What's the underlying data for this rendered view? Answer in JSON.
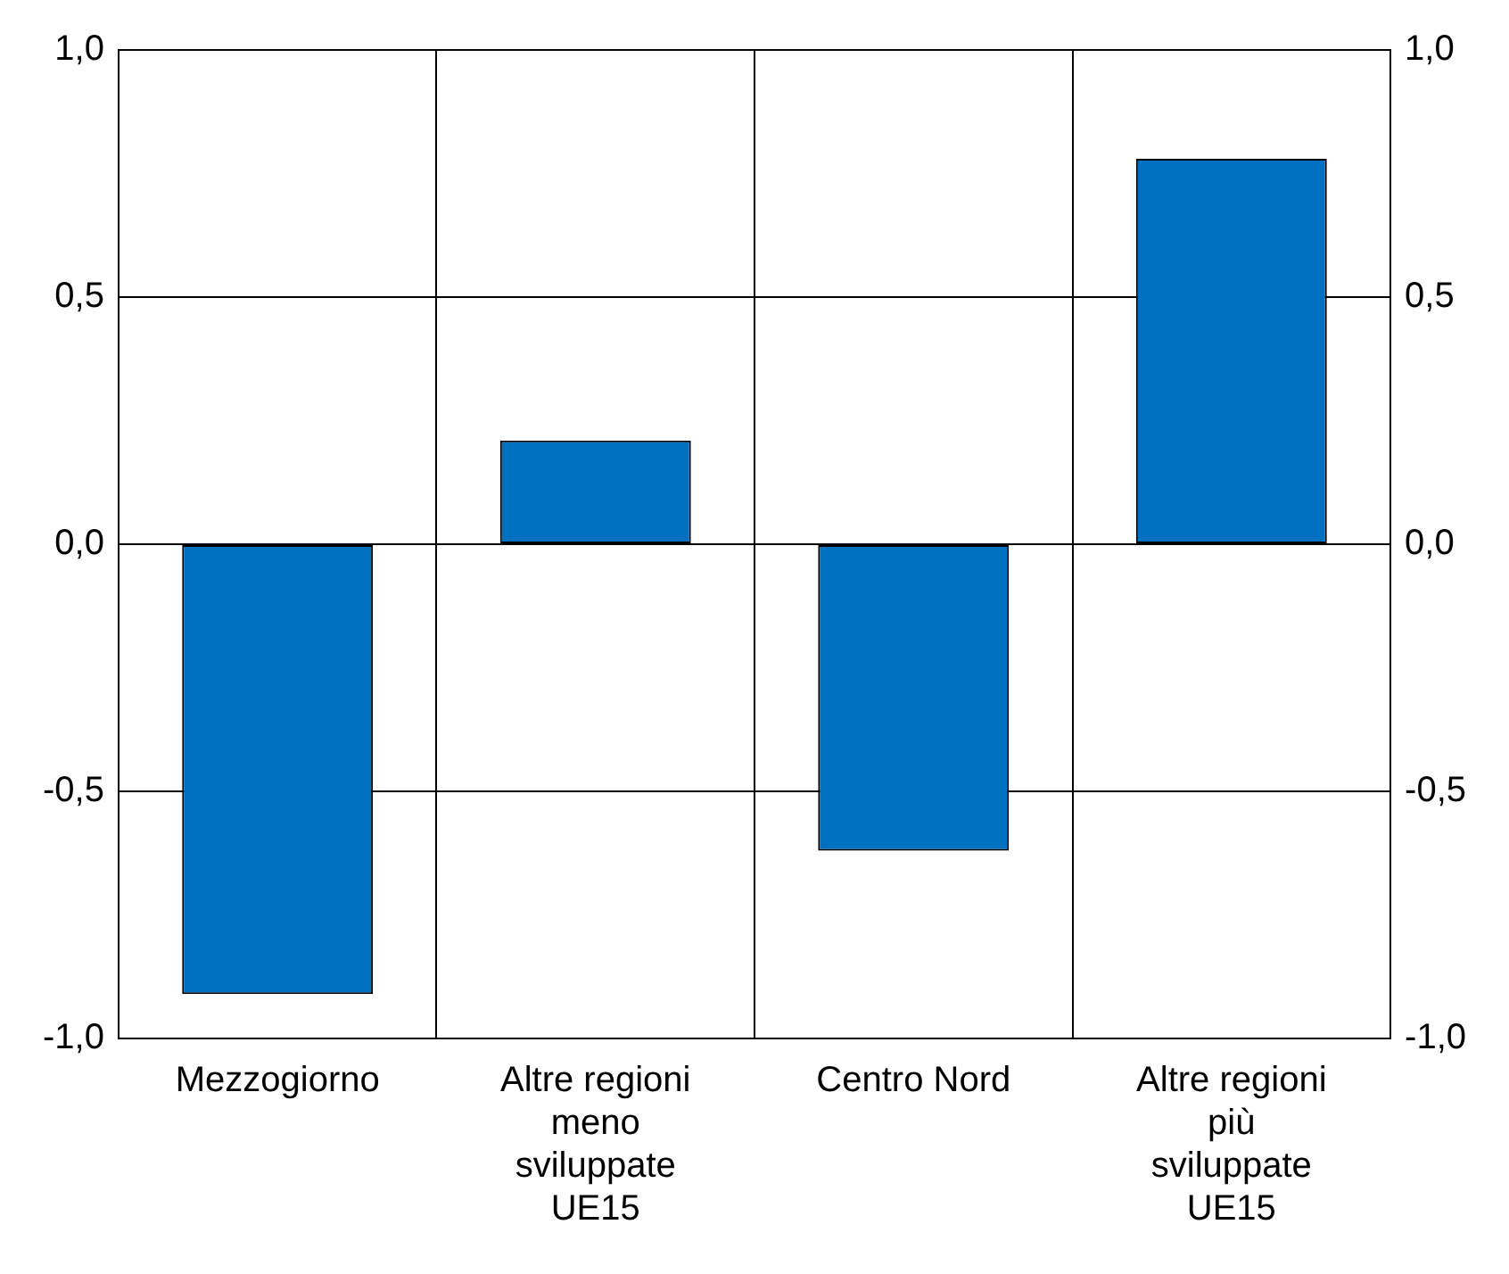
{
  "chart_data": {
    "type": "bar",
    "categories": [
      "Mezzogiorno",
      "Altre regioni meno sviluppate UE15",
      "Centro Nord",
      "Altre regioni più sviluppate UE15"
    ],
    "values": [
      -0.91,
      0.21,
      -0.62,
      0.78
    ],
    "color": "#0070c0",
    "ylim": [
      -1,
      1
    ],
    "yticks": [
      {
        "value": -1,
        "label": "-1,0"
      },
      {
        "value": -0.5,
        "label": "-0,5"
      },
      {
        "value": 0,
        "label": "0,0"
      },
      {
        "value": 0.5,
        "label": "0,5"
      },
      {
        "value": 1,
        "label": "1,0"
      }
    ],
    "y2lim": [
      -1,
      1
    ],
    "y2ticks": [
      {
        "value": -1,
        "label": "-1,0"
      },
      {
        "value": -0.5,
        "label": "-0,5"
      },
      {
        "value": 0,
        "label": "0,0"
      },
      {
        "value": 0.5,
        "label": "0,5"
      },
      {
        "value": 1,
        "label": "1,0"
      }
    ],
    "grid": true
  }
}
